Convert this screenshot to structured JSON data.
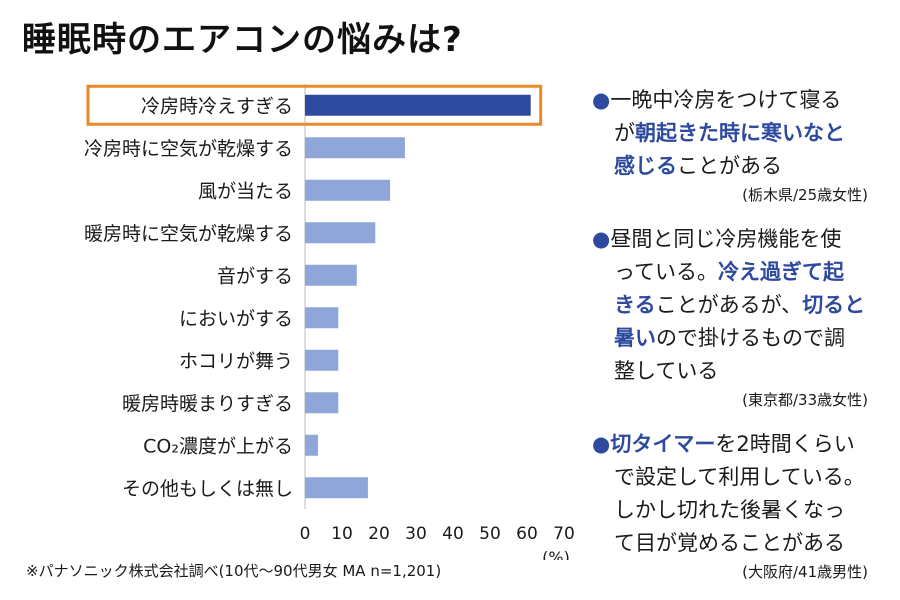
{
  "title": "睡眠時のエアコンの悩みは?",
  "chart_data": {
    "type": "bar",
    "orientation": "horizontal",
    "title": "睡眠時のエアコンの悩みは?",
    "categories": [
      "冷房時冷えすぎる",
      "冷房時に空気が乾燥する",
      "風が当たる",
      "暖房時に空気が乾燥する",
      "音がする",
      "においがする",
      "ホコリが舞う",
      "暖房時暖まりすぎる",
      "CO₂濃度が上がる",
      "その他もしくは無し"
    ],
    "values": [
      61,
      27,
      23,
      19,
      14,
      9,
      9,
      9,
      3.5,
      17
    ],
    "highlight_index": 0,
    "xlim": [
      0,
      70
    ],
    "x_ticks": [
      0,
      10,
      20,
      30,
      40,
      50,
      60,
      70
    ],
    "unit": "(%)",
    "colors": {
      "highlight": "#2e4a9e",
      "bar": "#8ea6d8",
      "frame": "#e8892a"
    }
  },
  "source": "※パナソニック株式会社調べ(10代〜90代男女 MA n=1,201)",
  "comments": [
    {
      "lines": [
        [
          {
            "t": "●",
            "c": "bullet"
          },
          {
            "t": "一晩中冷房をつけて寝る"
          }
        ],
        [
          {
            "t": "が"
          },
          {
            "t": "朝起きた時に寒いなと",
            "c": "hl"
          }
        ],
        [
          {
            "t": "感じる",
            "c": "hl"
          },
          {
            "t": "ことがある"
          }
        ]
      ],
      "attribution": "(栃木県/25歳女性)"
    },
    {
      "lines": [
        [
          {
            "t": "●",
            "c": "bullet"
          },
          {
            "t": "昼間と同じ冷房機能を使"
          }
        ],
        [
          {
            "t": "っている。"
          },
          {
            "t": "冷え過ぎて起",
            "c": "hl"
          }
        ],
        [
          {
            "t": "きる",
            "c": "hl"
          },
          {
            "t": "ことがあるが、"
          },
          {
            "t": "切ると",
            "c": "hl"
          }
        ],
        [
          {
            "t": "暑い",
            "c": "hl"
          },
          {
            "t": "ので掛けるもので調"
          }
        ],
        [
          {
            "t": "整している"
          }
        ]
      ],
      "attribution": "(東京都/33歳女性)"
    },
    {
      "lines": [
        [
          {
            "t": "●",
            "c": "bullet"
          },
          {
            "t": "切タイマー",
            "c": "hl"
          },
          {
            "t": "を2時間くらい"
          }
        ],
        [
          {
            "t": "で設定して利用している。"
          }
        ],
        [
          {
            "t": "しかし切れた後暑くなっ"
          }
        ],
        [
          {
            "t": "て目が覚めることがある"
          }
        ]
      ],
      "attribution": "(大阪府/41歳男性)"
    }
  ]
}
